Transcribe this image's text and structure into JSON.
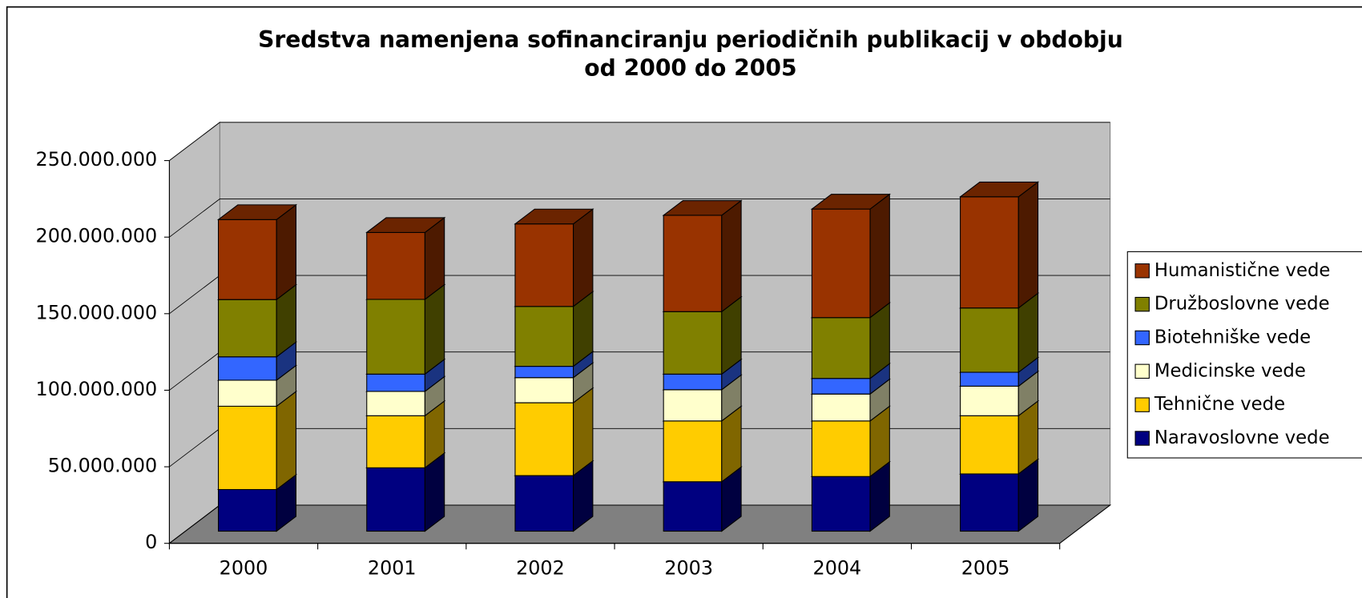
{
  "chart_data": {
    "type": "bar3d_stacked",
    "title": [
      "Sredstva namenjena sofinanciranju periodičnih publikacij v obdobju",
      "od 2000 do 2005"
    ],
    "categories": [
      "2000",
      "2001",
      "2002",
      "2003",
      "2004",
      "2005"
    ],
    "series": [
      {
        "name": "Naravoslovne vede",
        "color": "#000080",
        "values": [
          27200000,
          41400000,
          36300000,
          32300000,
          35700000,
          37400000
        ]
      },
      {
        "name": "Tehnične vede",
        "color": "#ffcc00",
        "values": [
          54400000,
          34000000,
          47600000,
          39700000,
          36300000,
          38000000
        ]
      },
      {
        "name": "Medicinske vede",
        "color": "#ffffcc",
        "values": [
          17000000,
          15900000,
          16400000,
          20400000,
          17600000,
          19300000
        ]
      },
      {
        "name": "Biotehniške vede",
        "color": "#3366ff",
        "values": [
          15300000,
          11300000,
          7400000,
          10200000,
          10200000,
          9100000
        ]
      },
      {
        "name": "Družboslovne vede",
        "color": "#808000",
        "values": [
          37400000,
          48800000,
          39100000,
          40800000,
          39700000,
          42000000
        ]
      },
      {
        "name": "Humanistične vede",
        "color": "#993300",
        "values": [
          52200000,
          43700000,
          53900000,
          62900000,
          70900000,
          72600000
        ]
      }
    ],
    "ylim": [
      0,
      250000000
    ],
    "yticks": [
      0,
      {
        "value": 50000000,
        "label": "50.000.000"
      },
      {
        "value": 100000000,
        "label": "100.000.000"
      },
      {
        "value": 150000000,
        "label": "150.000.000"
      },
      {
        "value": 200000000,
        "label": "200.000.000"
      },
      {
        "value": 250000000,
        "label": "250.000.000"
      }
    ],
    "grid": true,
    "legend": "right",
    "stacked": true
  }
}
